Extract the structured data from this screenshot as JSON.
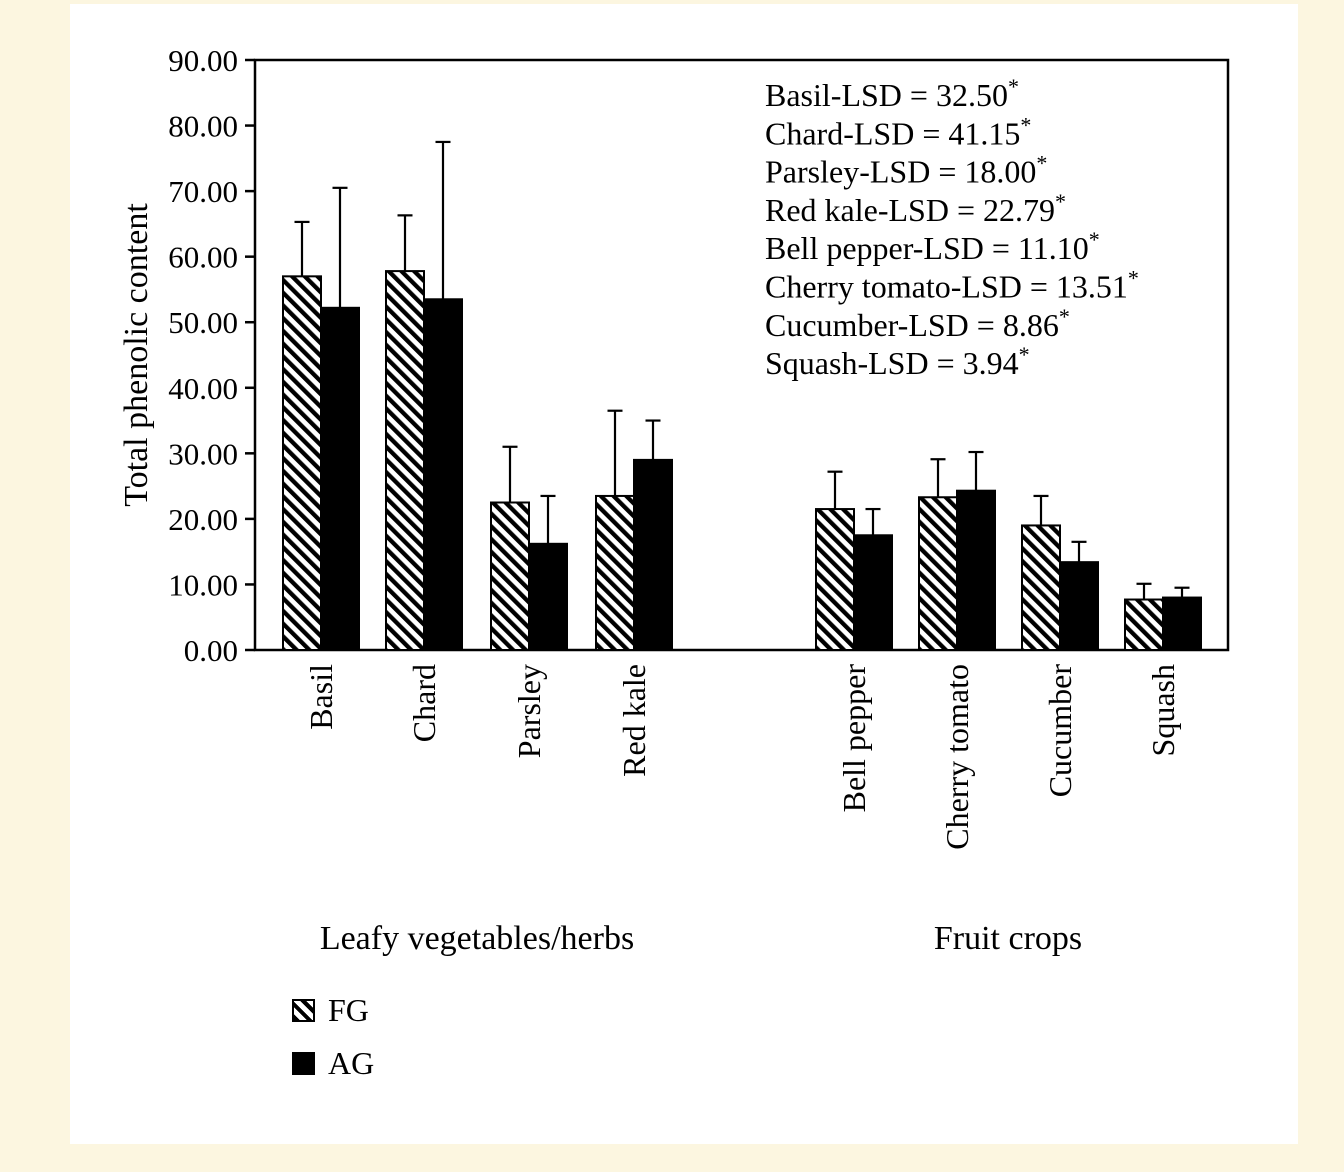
{
  "page": {
    "background_color": "#fcf6e0",
    "panel_color": "#ffffff"
  },
  "colors": {
    "axis": "#000000",
    "bar_fill": "#000000",
    "hatch": "#000000"
  },
  "chart_data": {
    "type": "bar",
    "title": "",
    "xlabel": "",
    "ylabel": "Total phenolic content",
    "ylim": [
      0,
      90
    ],
    "ytick_interval": 10,
    "ytick_labels": [
      "0.00",
      "10.00",
      "20.00",
      "30.00",
      "40.00",
      "50.00",
      "60.00",
      "70.00",
      "80.00",
      "90.00"
    ],
    "grid": false,
    "legend_position": "bottom-left",
    "categories": [
      "Basil",
      "Chard",
      "Parsley",
      "Red kale",
      "Bell pepper",
      "Cherry tomato",
      "Cucumber",
      "Squash"
    ],
    "category_groups": [
      {
        "label": "Leafy vegetables/herbs",
        "span": [
          0,
          3
        ]
      },
      {
        "label": "Fruit crops",
        "span": [
          4,
          7
        ]
      }
    ],
    "series": [
      {
        "name": "FG",
        "fill": "hatched-diagonal",
        "values": [
          57.0,
          57.8,
          22.5,
          23.5,
          21.5,
          23.3,
          19.0,
          7.7
        ],
        "errors_plus": [
          8.3,
          8.5,
          8.5,
          13.0,
          5.7,
          5.8,
          4.5,
          2.4
        ]
      },
      {
        "name": "AG",
        "fill": "solid-black",
        "values": [
          52.2,
          53.5,
          16.2,
          29.0,
          17.5,
          24.3,
          13.4,
          8.0
        ],
        "errors_plus": [
          18.3,
          24.0,
          7.3,
          6.0,
          4.0,
          5.9,
          3.1,
          1.5
        ]
      }
    ],
    "annotations": [
      {
        "text": "Basil-LSD = 32.50",
        "superscript": "*"
      },
      {
        "text": "Chard-LSD = 41.15",
        "superscript": "*"
      },
      {
        "text": "Parsley-LSD = 18.00",
        "superscript": "*"
      },
      {
        "text": "Red kale-LSD = 22.79",
        "superscript": "*"
      },
      {
        "text": "Bell pepper-LSD = 11.10",
        "superscript": "*"
      },
      {
        "text": "Cherry tomato-LSD = 13.51",
        "superscript": "*"
      },
      {
        "text": "Cucumber-LSD = 8.86",
        "superscript": "*"
      },
      {
        "text": "Squash-LSD = 3.94",
        "superscript": "*"
      }
    ],
    "legend": [
      {
        "label": "FG",
        "fill": "hatched-diagonal"
      },
      {
        "label": "AG",
        "fill": "solid-black"
      }
    ]
  }
}
